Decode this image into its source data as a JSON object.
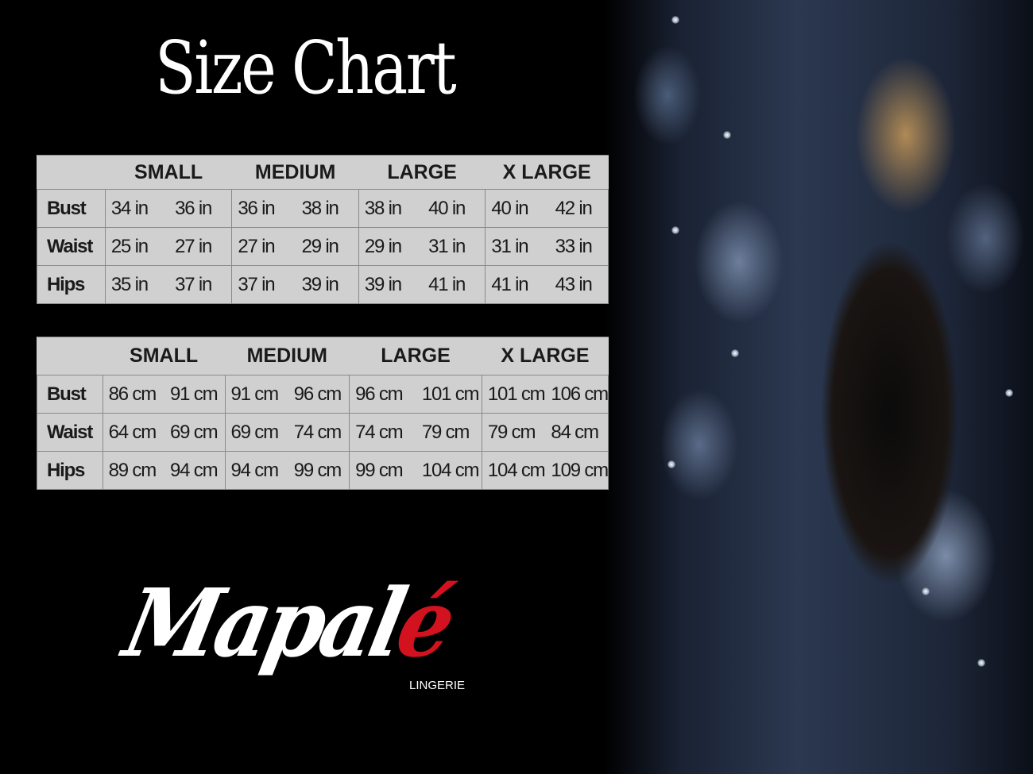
{
  "title": "Size Chart",
  "brand": {
    "name_main": "Mapal",
    "name_accent": "é",
    "subtitle": "LINGERIE",
    "accent_color": "#d3121f"
  },
  "colors": {
    "background": "#000000",
    "table_bg": "#d0d0d0",
    "text": "#1a1a1a"
  },
  "tables": [
    {
      "headers": [
        "SMALL",
        "MEDIUM",
        "LARGE",
        "X LARGE"
      ],
      "rows": [
        {
          "label": "Bust",
          "values": [
            "34 in",
            "36 in",
            "36 in",
            "38 in",
            "38 in",
            "40 in",
            "40 in",
            "42 in"
          ]
        },
        {
          "label": "Waist",
          "values": [
            "25 in",
            "27 in",
            "27 in",
            "29 in",
            "29 in",
            "31 in",
            "31 in",
            "33 in"
          ]
        },
        {
          "label": "Hips",
          "values": [
            "35 in",
            "37 in",
            "37 in",
            "39 in",
            "39 in",
            "41 in",
            "41 in",
            "43 in"
          ]
        }
      ]
    },
    {
      "headers": [
        "SMALL",
        "MEDIUM",
        "LARGE",
        "X LARGE"
      ],
      "rows": [
        {
          "label": "Bust",
          "values": [
            "86 cm",
            "91 cm",
            "91 cm",
            "96 cm",
            "96 cm",
            "101 cm",
            "101 cm",
            "106 cm"
          ]
        },
        {
          "label": "Waist",
          "values": [
            "64 cm",
            "69 cm",
            "69 cm",
            "74 cm",
            "74 cm",
            "79  cm",
            "79 cm",
            "84 cm"
          ]
        },
        {
          "label": "Hips",
          "values": [
            "89 cm",
            "94 cm",
            "94 cm",
            "99 cm",
            "99 cm",
            "104 cm",
            "104 cm",
            "109 cm"
          ]
        }
      ]
    }
  ]
}
